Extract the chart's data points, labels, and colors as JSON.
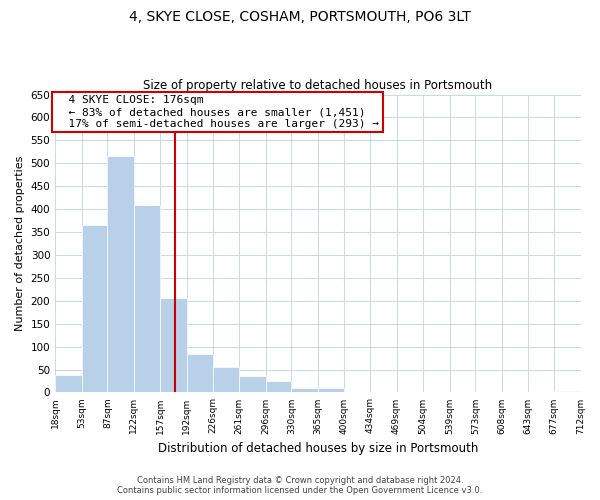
{
  "title": "4, SKYE CLOSE, COSHAM, PORTSMOUTH, PO6 3LT",
  "subtitle": "Size of property relative to detached houses in Portsmouth",
  "xlabel": "Distribution of detached houses by size in Portsmouth",
  "ylabel": "Number of detached properties",
  "bar_color": "#b8d0e8",
  "background_color": "#ffffff",
  "grid_color": "#c8d8ec",
  "vline_x": 176,
  "vline_color": "#cc0000",
  "bin_edges": [
    18,
    53,
    87,
    122,
    157,
    192,
    226,
    261,
    296,
    330,
    365,
    400,
    434,
    469,
    504,
    539,
    573,
    608,
    643,
    677,
    712
  ],
  "bar_heights": [
    38,
    365,
    515,
    410,
    207,
    83,
    56,
    36,
    24,
    10,
    10,
    0,
    0,
    0,
    0,
    0,
    0,
    0,
    0,
    3
  ],
  "ylim": [
    0,
    650
  ],
  "yticks": [
    0,
    50,
    100,
    150,
    200,
    250,
    300,
    350,
    400,
    450,
    500,
    550,
    600,
    650
  ],
  "annotation_title": "4 SKYE CLOSE: 176sqm",
  "annotation_line1": "← 83% of detached houses are smaller (1,451)",
  "annotation_line2": "17% of semi-detached houses are larger (293) →",
  "annotation_box_color": "#ffffff",
  "annotation_box_edge_color": "#cc0000",
  "footer_line1": "Contains HM Land Registry data © Crown copyright and database right 2024.",
  "footer_line2": "Contains public sector information licensed under the Open Government Licence v3.0."
}
